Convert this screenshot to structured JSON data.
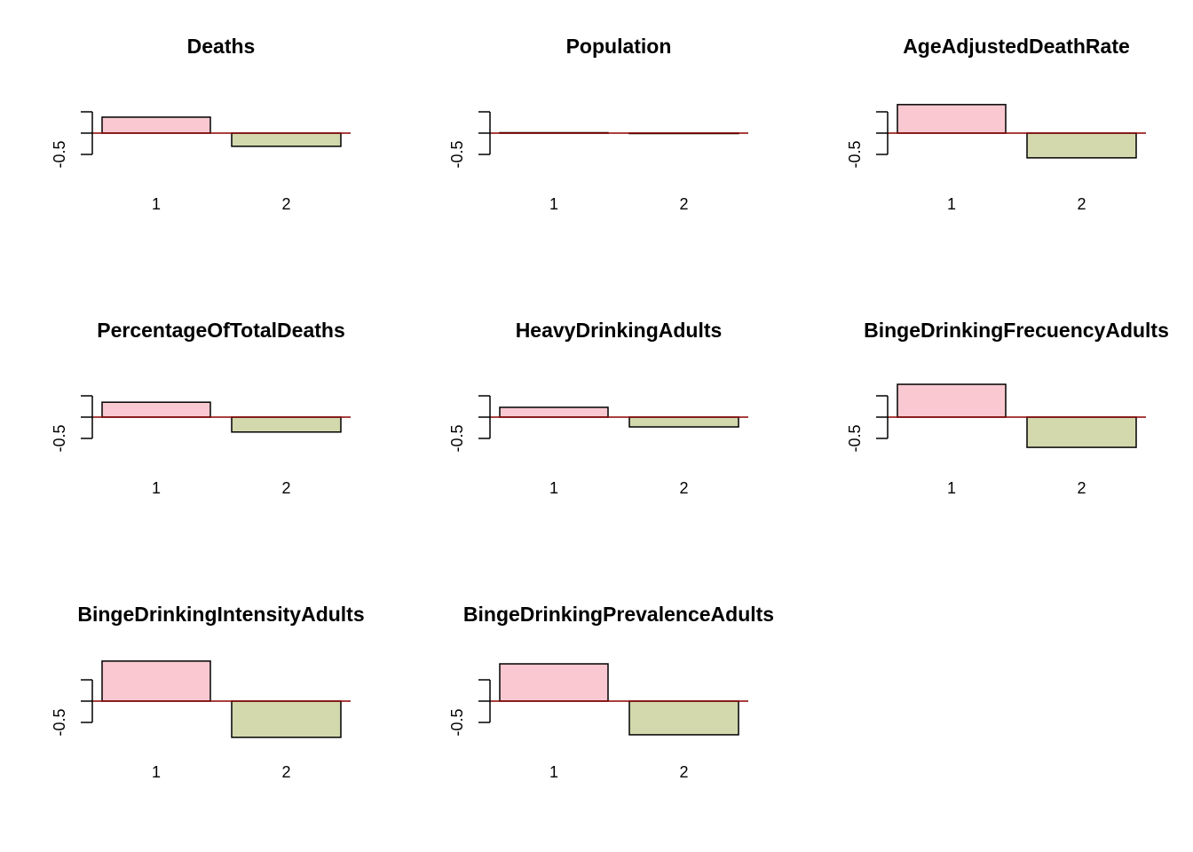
{
  "chart_data": [
    {
      "type": "bar",
      "title": "Deaths",
      "categories": [
        "1",
        "2"
      ],
      "values": [
        0.375,
        -0.31
      ],
      "colors": [
        "#f9c8d0",
        "#d3d9ad"
      ],
      "ylim": [
        -1.5,
        1.5
      ],
      "yticks": [
        -0.5,
        0,
        0.5
      ]
    },
    {
      "type": "bar",
      "title": "Population",
      "categories": [
        "1",
        "2"
      ],
      "values": [
        0.01,
        -0.01
      ],
      "colors": [
        "#f9c8d0",
        "#d3d9ad"
      ],
      "ylim": [
        -1.5,
        1.5
      ],
      "yticks": [
        -0.5,
        0,
        0.5
      ]
    },
    {
      "type": "bar",
      "title": "AgeAdjustedDeathRate",
      "categories": [
        "1",
        "2"
      ],
      "values": [
        0.67,
        -0.58
      ],
      "colors": [
        "#f9c8d0",
        "#d3d9ad"
      ],
      "ylim": [
        -1.5,
        1.5
      ],
      "yticks": [
        -0.5,
        0,
        0.5
      ]
    },
    {
      "type": "bar",
      "title": "PercentageOfTotalDeaths",
      "categories": [
        "1",
        "2"
      ],
      "values": [
        0.35,
        -0.35
      ],
      "colors": [
        "#f9c8d0",
        "#d3d9ad"
      ],
      "ylim": [
        -1.5,
        1.5
      ],
      "yticks": [
        -0.5,
        0,
        0.5
      ]
    },
    {
      "type": "bar",
      "title": "HeavyDrinkingAdults",
      "categories": [
        "1",
        "2"
      ],
      "values": [
        0.23,
        -0.23
      ],
      "colors": [
        "#f9c8d0",
        "#d3d9ad"
      ],
      "ylim": [
        -1.5,
        1.5
      ],
      "yticks": [
        -0.5,
        0,
        0.5
      ]
    },
    {
      "type": "bar",
      "title": "BingeDrinkingFrecuencyAdults",
      "categories": [
        "1",
        "2"
      ],
      "values": [
        0.77,
        -0.71
      ],
      "colors": [
        "#f9c8d0",
        "#d3d9ad"
      ],
      "ylim": [
        -1.5,
        1.5
      ],
      "yticks": [
        -0.5,
        0,
        0.5
      ]
    },
    {
      "type": "bar",
      "title": "BingeDrinkingIntensityAdults",
      "categories": [
        "1",
        "2"
      ],
      "values": [
        0.94,
        -0.85
      ],
      "colors": [
        "#f9c8d0",
        "#d3d9ad"
      ],
      "ylim": [
        -1.5,
        1.5
      ],
      "yticks": [
        -0.5,
        0,
        0.5
      ]
    },
    {
      "type": "bar",
      "title": "BingeDrinkingPrevalenceAdults",
      "categories": [
        "1",
        "2"
      ],
      "values": [
        0.875,
        -0.79
      ],
      "colors": [
        "#f9c8d0",
        "#d3d9ad"
      ],
      "ylim": [
        -1.5,
        1.5
      ],
      "yticks": [
        -0.5,
        0,
        0.5
      ]
    }
  ]
}
